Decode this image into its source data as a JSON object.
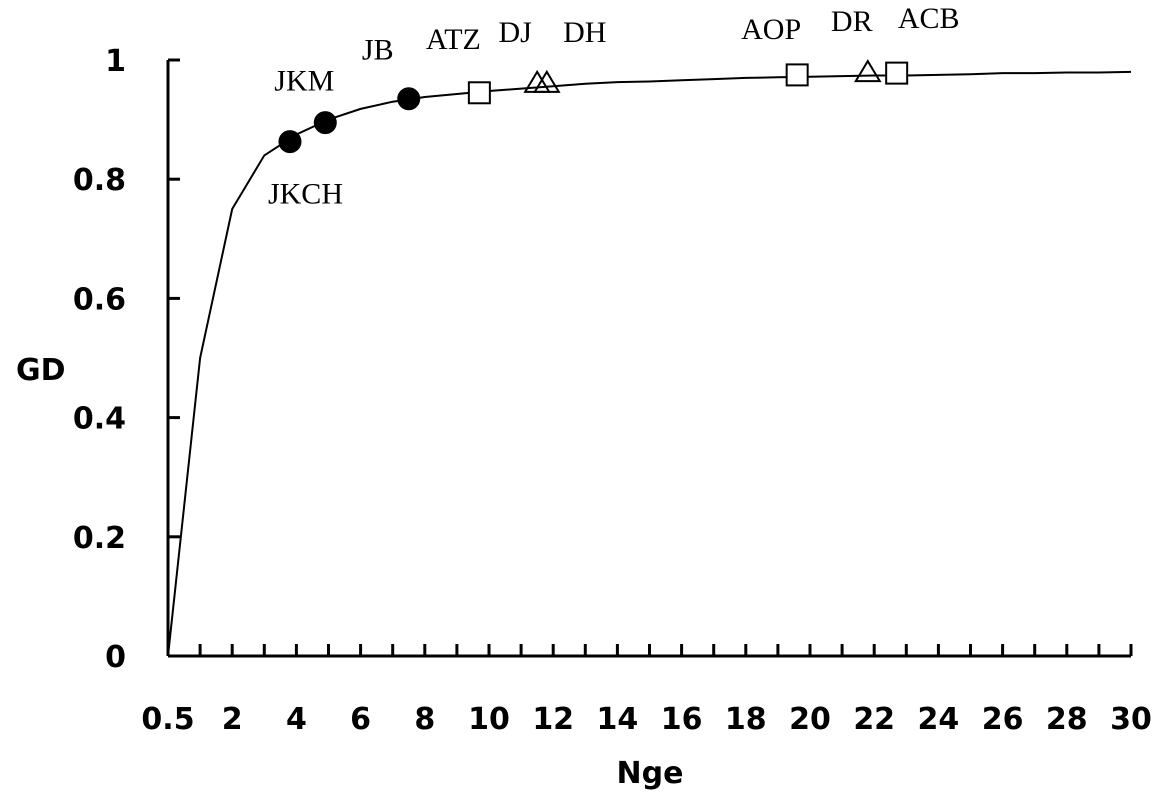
{
  "chart_data": {
    "type": "line",
    "xlabel": "Nge",
    "ylabel": "GD",
    "x_ticks": [
      "0.5",
      "2",
      "4",
      "6",
      "8",
      "10",
      "12",
      "14",
      "16",
      "18",
      "20",
      "22",
      "24",
      "26",
      "28",
      "30"
    ],
    "y_ticks": [
      "0",
      "0.2",
      "0.4",
      "0.6",
      "0.8",
      "1"
    ],
    "ylim": [
      0,
      1
    ],
    "grid": false,
    "curve": {
      "x": [
        0.5,
        1,
        2,
        3,
        4,
        5,
        6,
        7,
        8,
        9,
        10,
        11,
        12,
        13,
        14,
        15,
        16,
        17,
        18,
        19,
        20,
        21,
        22,
        23,
        24,
        25,
        26,
        27,
        28,
        29,
        30
      ],
      "y": [
        0.0,
        0.5,
        0.75,
        0.84,
        0.875,
        0.9,
        0.918,
        0.93,
        0.938,
        0.943,
        0.948,
        0.952,
        0.956,
        0.96,
        0.963,
        0.964,
        0.966,
        0.968,
        0.97,
        0.971,
        0.972,
        0.973,
        0.974,
        0.974,
        0.975,
        0.976,
        0.978,
        0.978,
        0.979,
        0.979,
        0.98
      ]
    },
    "points": [
      {
        "label": "JKCH",
        "x": 3.8,
        "y": 0.863,
        "marker": "filled-circle",
        "label_position": "below"
      },
      {
        "label": "JKM",
        "x": 4.9,
        "y": 0.895,
        "marker": "filled-circle",
        "label_position": "above-left"
      },
      {
        "label": "JB",
        "x": 7.5,
        "y": 0.935,
        "marker": "filled-circle",
        "label_position": "above-left"
      },
      {
        "label": "ATZ",
        "x": 9.7,
        "y": 0.945,
        "marker": "open-square",
        "label_position": "above-left"
      },
      {
        "label": "DJ",
        "x": 11.5,
        "y": 0.96,
        "marker": "open-triangle",
        "label_position": "above"
      },
      {
        "label": "DH",
        "x": 11.8,
        "y": 0.96,
        "marker": "open-triangle",
        "label_position": "above-right"
      },
      {
        "label": "AOP",
        "x": 19.6,
        "y": 0.975,
        "marker": "open-square",
        "label_position": "above-left"
      },
      {
        "label": "DR",
        "x": 21.8,
        "y": 0.978,
        "marker": "open-triangle",
        "label_position": "above"
      },
      {
        "label": "ACB",
        "x": 22.7,
        "y": 0.978,
        "marker": "open-square",
        "label_position": "above-right"
      }
    ]
  }
}
